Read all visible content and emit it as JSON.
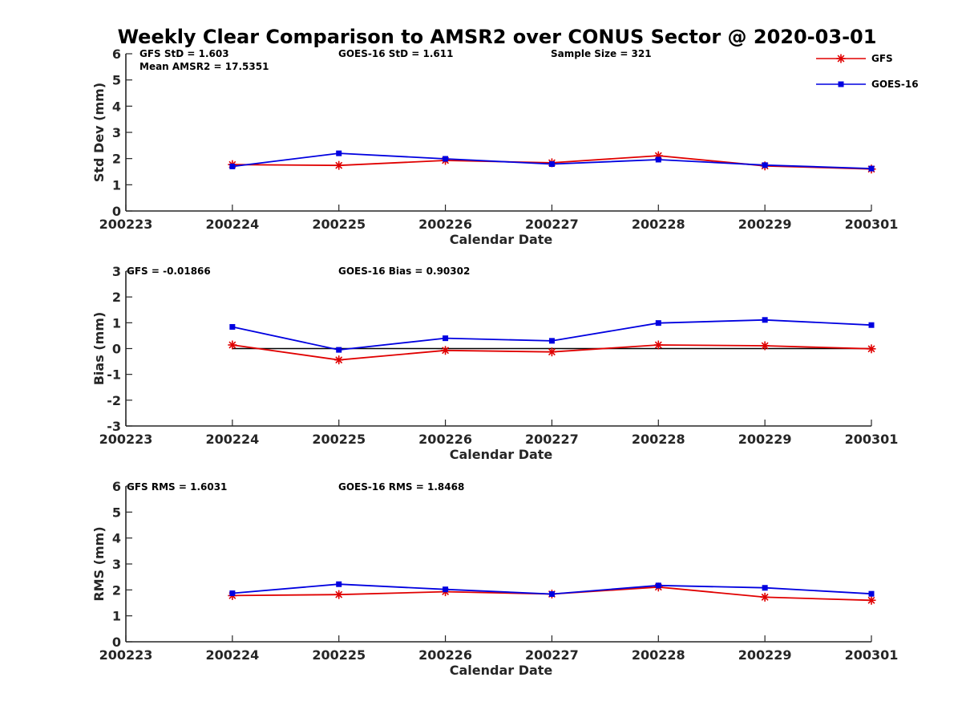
{
  "figure": {
    "title": "Weekly Clear Comparison to AMSR2 over CONUS Sector @ 2020-03-01"
  },
  "legend": {
    "placement": "top-right",
    "entries": [
      {
        "label": "GFS",
        "color": "#e00000",
        "marker": "asterisk"
      },
      {
        "label": "GOES-16",
        "color": "#0000e0",
        "marker": "square"
      }
    ]
  },
  "chart_data": [
    {
      "type": "line",
      "xlabel": "Calendar Date",
      "ylabel": "Std Dev (mm)",
      "categories": [
        "200223",
        "200224",
        "200225",
        "200226",
        "200227",
        "200228",
        "200229",
        "200301"
      ],
      "ylim": [
        0,
        6
      ],
      "yticks": [
        "0",
        "1",
        "2",
        "3",
        "4",
        "5",
        "6"
      ],
      "grid": false,
      "annotations": [
        "GFS StD = 1.603",
        "GOES-16 StD = 1.611",
        "Sample Size = 321",
        "Mean AMSR2 = 17.5351"
      ],
      "series": [
        {
          "name": "GFS",
          "color": "#e00000",
          "marker": "asterisk",
          "x": [
            "200224",
            "200225",
            "200226",
            "200227",
            "200228",
            "200229",
            "200301"
          ],
          "values": [
            1.77,
            1.74,
            1.93,
            1.84,
            2.11,
            1.72,
            1.6
          ]
        },
        {
          "name": "GOES-16",
          "color": "#0000e0",
          "marker": "square",
          "x": [
            "200224",
            "200225",
            "200226",
            "200227",
            "200228",
            "200229",
            "200301"
          ],
          "values": [
            1.7,
            2.2,
            1.99,
            1.79,
            1.96,
            1.75,
            1.62
          ]
        }
      ]
    },
    {
      "type": "line",
      "xlabel": "Calendar Date",
      "ylabel": "Bias (mm)",
      "categories": [
        "200223",
        "200224",
        "200225",
        "200226",
        "200227",
        "200228",
        "200229",
        "200301"
      ],
      "ylim": [
        -3,
        3
      ],
      "yticks": [
        "-3",
        "-2",
        "-1",
        "0",
        "1",
        "2",
        "3"
      ],
      "grid": false,
      "zero_line": {
        "x": [
          "200224",
          "200301"
        ],
        "y": 0,
        "color": "#000000"
      },
      "annotations": [
        "GFS = -0.01866",
        "GOES-16 Bias  = 0.90302"
      ],
      "series": [
        {
          "name": "GFS",
          "color": "#e00000",
          "marker": "asterisk",
          "x": [
            "200224",
            "200225",
            "200226",
            "200227",
            "200228",
            "200229",
            "200301"
          ],
          "values": [
            0.14,
            -0.44,
            -0.07,
            -0.13,
            0.14,
            0.11,
            -0.01
          ]
        },
        {
          "name": "GOES-16",
          "color": "#0000e0",
          "marker": "square",
          "x": [
            "200224",
            "200225",
            "200226",
            "200227",
            "200228",
            "200229",
            "200301"
          ],
          "values": [
            0.84,
            -0.05,
            0.4,
            0.3,
            0.99,
            1.11,
            0.91
          ]
        }
      ]
    },
    {
      "type": "line",
      "xlabel": "Calendar Date",
      "ylabel": "RMS (mm)",
      "categories": [
        "200223",
        "200224",
        "200225",
        "200226",
        "200227",
        "200228",
        "200229",
        "200301"
      ],
      "ylim": [
        0,
        6
      ],
      "yticks": [
        "0",
        "1",
        "2",
        "3",
        "4",
        "5",
        "6"
      ],
      "grid": false,
      "annotations": [
        "GFS RMS = 1.6031",
        "GOES-16 RMS = 1.8468"
      ],
      "series": [
        {
          "name": "GFS",
          "color": "#e00000",
          "marker": "asterisk",
          "x": [
            "200224",
            "200225",
            "200226",
            "200227",
            "200228",
            "200229",
            "200301"
          ],
          "values": [
            1.78,
            1.82,
            1.93,
            1.84,
            2.11,
            1.72,
            1.6
          ]
        },
        {
          "name": "GOES-16",
          "color": "#0000e0",
          "marker": "square",
          "x": [
            "200224",
            "200225",
            "200226",
            "200227",
            "200228",
            "200229",
            "200301"
          ],
          "values": [
            1.87,
            2.22,
            2.02,
            1.84,
            2.17,
            2.08,
            1.85
          ]
        }
      ]
    }
  ]
}
